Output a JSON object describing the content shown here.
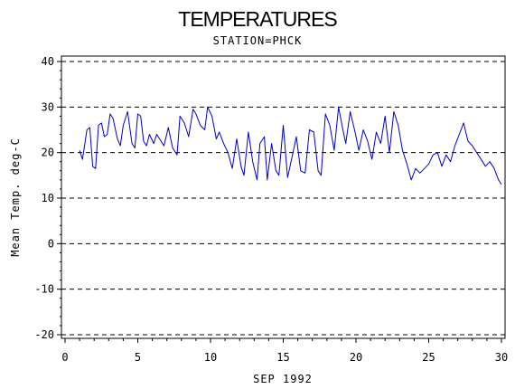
{
  "chart_data": {
    "type": "line",
    "title": "TEMPERATURES",
    "subtitle": "STATION=PHCK",
    "xlabel": "SEP 1992",
    "ylabel": "Mean Temp. deg-C",
    "xlim": [
      0,
      30
    ],
    "ylim": [
      -20,
      40
    ],
    "xticks": [
      "0",
      "5",
      "10",
      "15",
      "20",
      "25",
      "30"
    ],
    "yticks": [
      "40",
      "30",
      "20",
      "10",
      "0",
      "-10",
      "-20"
    ],
    "grid": "dashed horizontal at major y ticks",
    "line_color": "#0000cc",
    "series": [
      {
        "x": [
          1.0,
          1.2,
          1.5,
          1.7,
          1.9,
          2.1,
          2.3,
          2.5,
          2.7,
          2.9,
          3.1,
          3.3,
          3.6,
          3.8,
          4.0,
          4.3,
          4.6,
          4.8,
          5.0,
          5.2,
          5.4,
          5.6,
          5.8,
          6.1,
          6.3,
          6.6,
          6.8,
          7.1,
          7.4,
          7.7,
          7.9,
          8.2,
          8.5,
          8.8,
          9.0,
          9.3,
          9.6,
          9.8,
          10.1,
          10.4,
          10.6,
          10.9,
          11.2,
          11.5,
          11.8,
          12.1,
          12.3,
          12.6,
          12.9,
          13.2,
          13.4,
          13.7,
          13.9,
          14.2,
          14.5,
          14.7,
          15.0,
          15.3,
          15.6,
          15.9,
          16.2,
          16.5,
          16.8,
          17.1,
          17.4,
          17.6,
          17.9,
          18.2,
          18.5,
          18.8,
          19.1,
          19.3,
          19.6,
          19.9,
          20.2,
          20.5,
          20.8,
          21.1,
          21.4,
          21.7,
          22.0,
          22.3,
          22.6,
          22.9,
          23.2,
          23.5,
          23.8,
          24.1,
          24.4,
          24.7,
          25.0,
          25.3,
          25.6,
          25.9,
          26.2,
          26.5,
          26.8,
          27.1,
          27.4,
          27.7,
          28.0,
          28.3,
          28.6,
          28.9,
          29.2,
          29.5,
          29.8,
          30.0
        ],
        "values": [
          20.5,
          18.5,
          25.0,
          25.5,
          17.0,
          16.5,
          26.0,
          26.5,
          23.5,
          24.0,
          28.5,
          27.5,
          23.0,
          21.5,
          26.0,
          29.0,
          22.0,
          21.0,
          28.5,
          28.0,
          22.5,
          21.5,
          24.0,
          22.0,
          24.0,
          22.5,
          21.5,
          25.5,
          21.0,
          19.5,
          28.0,
          26.5,
          23.5,
          29.5,
          28.5,
          26.0,
          25.0,
          30.0,
          28.0,
          23.0,
          24.5,
          22.0,
          20.0,
          16.5,
          23.0,
          17.0,
          15.0,
          24.5,
          18.0,
          14.0,
          22.0,
          23.5,
          14.0,
          22.0,
          16.0,
          15.0,
          26.0,
          14.5,
          19.0,
          23.5,
          16.0,
          15.5,
          25.0,
          24.5,
          16.0,
          15.0,
          28.5,
          26.0,
          20.5,
          30.0,
          25.0,
          22.0,
          29.0,
          25.0,
          20.5,
          25.0,
          22.5,
          18.5,
          24.5,
          22.0,
          28.0,
          20.0,
          29.0,
          26.0,
          20.5,
          17.5,
          14.0,
          16.5,
          15.5,
          16.5,
          17.5,
          19.5,
          20.0,
          17.0,
          19.5,
          18.0,
          21.5,
          24.0,
          26.5,
          22.5,
          21.5,
          20.0,
          18.5,
          17.0,
          18.0,
          16.5,
          14.0,
          13.0
        ]
      }
    ]
  }
}
